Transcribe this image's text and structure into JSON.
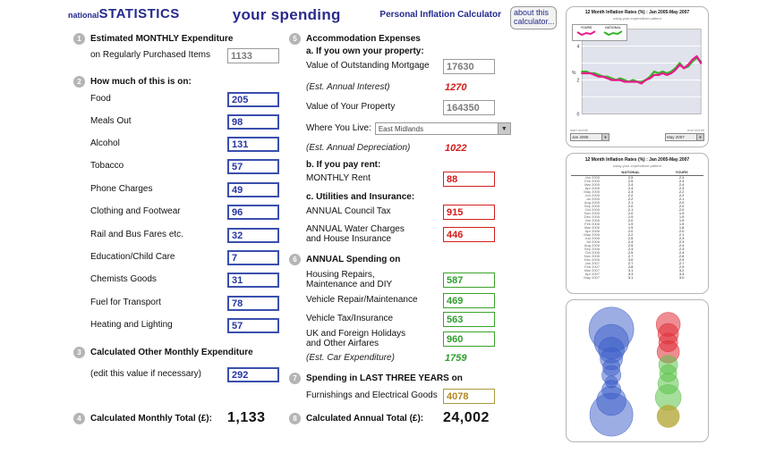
{
  "header": {
    "logo_prefix": "national",
    "logo_main": "STATISTICS",
    "title": "your spending",
    "subtitle": "Personal Inflation Calculator",
    "about_button": "about this calculator..."
  },
  "left": {
    "s1": {
      "num": "1",
      "heading": "Estimated MONTHLY Expenditure",
      "row_label": "on Regularly Purchased Items",
      "value": "1133"
    },
    "s2": {
      "num": "2",
      "heading": "How much of this is on:",
      "items": [
        {
          "label": "Food",
          "value": "205"
        },
        {
          "label": "Meals Out",
          "value": "98"
        },
        {
          "label": "Alcohol",
          "value": "131"
        },
        {
          "label": "Tobacco",
          "value": "57"
        },
        {
          "label": "Phone Charges",
          "value": "49"
        },
        {
          "label": "Clothing and Footwear",
          "value": "96"
        },
        {
          "label": "Rail and Bus Fares etc.",
          "value": "32"
        },
        {
          "label": "Education/Child Care",
          "value": "7"
        },
        {
          "label": "Chemists Goods",
          "value": "31"
        },
        {
          "label": "Fuel for Transport",
          "value": "78"
        },
        {
          "label": "Heating and Lighting",
          "value": "57"
        }
      ]
    },
    "s3": {
      "num": "3",
      "heading": "Calculated Other Monthly Expenditure",
      "row_label": "(edit this value if necessary)",
      "value": "292"
    },
    "s4": {
      "num": "4",
      "heading": "Calculated Monthly Total (£):",
      "value": "1,133"
    }
  },
  "middle": {
    "s5": {
      "num": "5",
      "heading": "Accommodation Expenses",
      "sub_a": "a. If you own your property:",
      "mortgage_label": "Value of Outstanding Mortgage",
      "mortgage_value": "17630",
      "interest_label": "(Est. Annual Interest)",
      "interest_value": "1270",
      "property_label": "Value of Your Property",
      "property_value": "164350",
      "where_label": "Where You Live:",
      "where_value": "East Midlands",
      "depreciation_label": "(Est. Annual Depreciation)",
      "depreciation_value": "1022",
      "sub_b": "b. If you pay rent:",
      "rent_label": "MONTHLY Rent",
      "rent_value": "88",
      "sub_c": "c. Utilities and Insurance:",
      "council_label": "ANNUAL Council Tax",
      "council_value": "915",
      "water_label": "ANNUAL Water Charges and House Insurance",
      "water_value": "446"
    },
    "s6": {
      "num": "6",
      "heading": "ANNUAL Spending on",
      "items": [
        {
          "label": "Housing Repairs, Maintenance and DIY",
          "value": "587"
        },
        {
          "label": "Vehicle Repair/Maintenance",
          "value": "469"
        },
        {
          "label": "Vehicle Tax/Insurance",
          "value": "563"
        },
        {
          "label": "UK and Foreign Holidays and Other Airfares",
          "value": "960"
        }
      ],
      "car_label": "(Est. Car Expenditure)",
      "car_value": "1759"
    },
    "s7": {
      "num": "7",
      "heading": "Spending in LAST THREE YEARS on",
      "row_label": "Furnishings and Electrical Goods",
      "value": "4078"
    },
    "s8": {
      "num": "8",
      "heading": "Calculated Annual Total (£):",
      "value": "24,002"
    }
  },
  "chart_data": [
    {
      "type": "line",
      "title": "12 Month Inflation Rates (%) : Jan 2005-May 2007",
      "subtitle": "using your expenditure pattern",
      "ylabel": "%",
      "ylim": [
        0,
        5
      ],
      "yticks": [
        0,
        2,
        4
      ],
      "grid": true,
      "legend_position": "top-left",
      "x": [
        "Jan 2005",
        "Feb 2005",
        "Mar 2005",
        "Apr 2005",
        "May 2005",
        "Jun 2005",
        "Jul 2005",
        "Aug 2005",
        "Sep 2005",
        "Oct 2005",
        "Nov 2005",
        "Dec 2005",
        "Jan 2006",
        "Feb 2006",
        "Mar 2006",
        "Apr 2006",
        "May 2006",
        "Jun 2006",
        "Jul 2006",
        "Aug 2006",
        "Sep 2006",
        "Oct 2006",
        "Nov 2006",
        "Dec 2006",
        "Jan 2007",
        "Feb 2007",
        "Mar 2007",
        "Apr 2007",
        "May 2007"
      ],
      "series": [
        {
          "name": "NATIONAL",
          "color": "#33b52a",
          "values": [
            2.5,
            2.5,
            2.4,
            2.4,
            2.3,
            2.2,
            2.2,
            2.1,
            2.0,
            2.1,
            2.0,
            1.9,
            2.0,
            1.9,
            1.9,
            2.0,
            2.2,
            2.5,
            2.4,
            2.5,
            2.4,
            2.5,
            2.7,
            3.0,
            2.7,
            2.8,
            3.1,
            3.3,
            3.1
          ]
        },
        {
          "name": "YOURS",
          "color": "#e8198b",
          "values": [
            2.4,
            2.4,
            2.4,
            2.3,
            2.2,
            2.2,
            2.1,
            2.0,
            2.0,
            2.0,
            1.9,
            1.9,
            1.9,
            1.9,
            1.8,
            2.0,
            2.1,
            2.3,
            2.3,
            2.4,
            2.3,
            2.4,
            2.6,
            2.9,
            2.7,
            2.9,
            3.2,
            3.4,
            3.0
          ]
        }
      ],
      "controls": {
        "start_label": "start month",
        "start": "Jan 2005",
        "end_label": "end month",
        "end": "May 2007"
      }
    },
    {
      "type": "table",
      "title": "12 Month Inflation Rates (%) : Jan 2005-May 2007",
      "subtitle": "using your expenditure pattern",
      "columns": [
        "NATIONAL",
        "YOURS"
      ],
      "rows": [
        [
          "Jan 2005",
          "2.5",
          "2.4"
        ],
        [
          "Feb 2005",
          "2.5",
          "2.4"
        ],
        [
          "Mar 2005",
          "2.4",
          "2.4"
        ],
        [
          "Apr 2005",
          "2.4",
          "2.3"
        ],
        [
          "May 2005",
          "2.3",
          "2.2"
        ],
        [
          "Jun 2005",
          "2.2",
          "2.2"
        ],
        [
          "Jul 2005",
          "2.2",
          "2.1"
        ],
        [
          "Aug 2005",
          "2.1",
          "2.0"
        ],
        [
          "Sep 2005",
          "2.0",
          "2.0"
        ],
        [
          "Oct 2005",
          "2.1",
          "2.0"
        ],
        [
          "Nov 2005",
          "2.0",
          "1.9"
        ],
        [
          "Dec 2005",
          "1.9",
          "1.9"
        ],
        [
          "Jan 2006",
          "2.0",
          "1.9"
        ],
        [
          "Feb 2006",
          "1.9",
          "1.9"
        ],
        [
          "Mar 2006",
          "1.9",
          "1.8"
        ],
        [
          "Apr 2006",
          "2.0",
          "2.0"
        ],
        [
          "May 2006",
          "2.2",
          "2.1"
        ],
        [
          "Jun 2006",
          "2.5",
          "2.3"
        ],
        [
          "Jul 2006",
          "2.4",
          "2.3"
        ],
        [
          "Aug 2006",
          "2.5",
          "2.4"
        ],
        [
          "Sep 2006",
          "2.4",
          "2.3"
        ],
        [
          "Oct 2006",
          "2.5",
          "2.4"
        ],
        [
          "Nov 2006",
          "2.7",
          "2.6"
        ],
        [
          "Dec 2006",
          "3.0",
          "2.9"
        ],
        [
          "Jan 2007",
          "2.7",
          "2.7"
        ],
        [
          "Feb 2007",
          "2.8",
          "2.9"
        ],
        [
          "Mar 2007",
          "3.1",
          "3.2"
        ],
        [
          "Apr 2007",
          "3.3",
          "3.4"
        ],
        [
          "May 2007",
          "3.1",
          "3.0"
        ]
      ]
    },
    {
      "type": "bubble",
      "groups": [
        {
          "name": "monthly-items",
          "color": "#3a5bc7",
          "opacity": 0.5,
          "cx": 50,
          "bubbles": [
            {
              "cy": 28,
              "r": 26
            },
            {
              "cy": 42,
              "r": 20
            },
            {
              "cy": 52,
              "r": 15
            },
            {
              "cy": 62,
              "r": 13
            },
            {
              "cy": 72,
              "r": 10
            },
            {
              "cy": 81,
              "r": 11
            },
            {
              "cy": 89,
              "r": 7
            },
            {
              "cy": 98,
              "r": 11
            },
            {
              "cy": 111,
              "r": 17
            },
            {
              "cy": 127,
              "r": 25
            }
          ]
        },
        {
          "name": "accommodation",
          "color": "#e03038",
          "opacity": 0.55,
          "cx": 116,
          "bubbles": [
            {
              "cy": 22,
              "r": 14
            },
            {
              "cy": 33,
              "r": 12
            },
            {
              "cy": 43,
              "r": 11
            },
            {
              "cy": 54,
              "r": 13
            }
          ]
        },
        {
          "name": "annual-spending",
          "color": "#5cc24a",
          "opacity": 0.55,
          "cx": 116,
          "bubbles": [
            {
              "cy": 69,
              "r": 11
            },
            {
              "cy": 79,
              "r": 10
            },
            {
              "cy": 91,
              "r": 12
            },
            {
              "cy": 107,
              "r": 15
            }
          ]
        },
        {
          "name": "three-year-spending",
          "color": "#b5a93a",
          "opacity": 0.8,
          "cx": 116,
          "bubbles": [
            {
              "cy": 129,
              "r": 13
            }
          ]
        }
      ]
    }
  ]
}
